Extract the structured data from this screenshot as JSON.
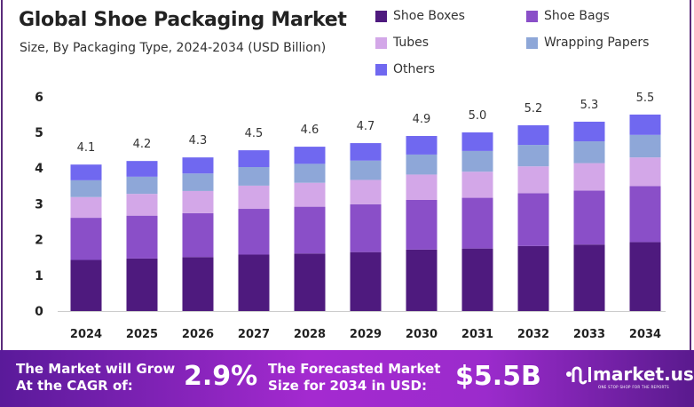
{
  "chart_data": {
    "type": "bar",
    "stacked": true,
    "title": "Global Shoe Packaging Market",
    "subtitle": "Size, By Packaging Type, 2024-2034 (USD Billion)",
    "categories": [
      "2024",
      "2025",
      "2026",
      "2027",
      "2028",
      "2029",
      "2030",
      "2031",
      "2032",
      "2033",
      "2034"
    ],
    "totals": [
      "4.1",
      "4.2",
      "4.3",
      "4.5",
      "4.6",
      "4.7",
      "4.9",
      "5.0",
      "5.2",
      "5.3",
      "5.5"
    ],
    "series": [
      {
        "name": "Shoe Boxes",
        "color": "#4e1a7e",
        "values": [
          1.43,
          1.47,
          1.51,
          1.58,
          1.61,
          1.65,
          1.72,
          1.75,
          1.82,
          1.86,
          1.93
        ]
      },
      {
        "name": "Shoe Bags",
        "color": "#8a4fc8",
        "values": [
          1.18,
          1.2,
          1.23,
          1.28,
          1.31,
          1.34,
          1.39,
          1.42,
          1.48,
          1.51,
          1.57
        ]
      },
      {
        "name": "Tubes",
        "color": "#d3a7e8",
        "values": [
          0.58,
          0.61,
          0.62,
          0.65,
          0.67,
          0.68,
          0.71,
          0.73,
          0.75,
          0.77,
          0.8
        ]
      },
      {
        "name": "Wrapping Papers",
        "color": "#8ea7d8",
        "values": [
          0.47,
          0.48,
          0.49,
          0.52,
          0.53,
          0.54,
          0.56,
          0.58,
          0.6,
          0.61,
          0.63
        ]
      },
      {
        "name": "Others",
        "color": "#7068f0",
        "values": [
          0.44,
          0.44,
          0.45,
          0.47,
          0.48,
          0.49,
          0.52,
          0.52,
          0.55,
          0.55,
          0.57
        ]
      }
    ],
    "yticks": [
      "0",
      "1",
      "2",
      "3",
      "4",
      "5",
      "6"
    ],
    "ylim": [
      0,
      6
    ],
    "grid": false,
    "legend_position": "top-right"
  },
  "banner": {
    "cagr_label_1": "The Market will Grow",
    "cagr_label_2": "At the CAGR of:",
    "cagr_value": "2.9%",
    "forecast_label_1": "The Forecasted Market",
    "forecast_label_2": "Size for 2034 in USD:",
    "forecast_value": "$5.5B",
    "logo_name": "market.us",
    "logo_tagline": "ONE STOP SHOP FOR THE REPORTS"
  }
}
